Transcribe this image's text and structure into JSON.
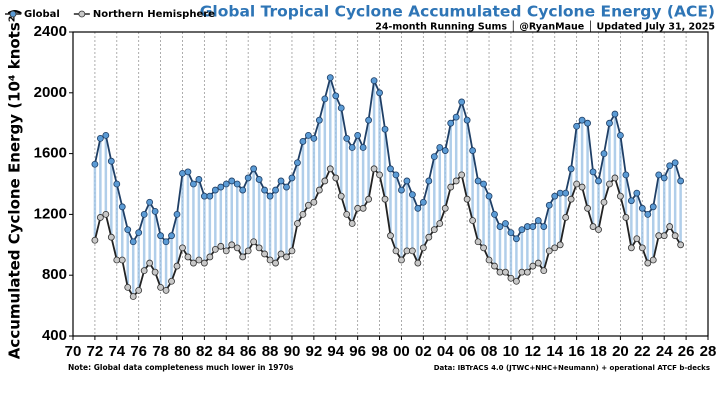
{
  "chart_data": {
    "type": "line",
    "title": "Global Tropical Cyclone Accumulated Cyclone Energy (ACE)",
    "subtitle": "24-month Running Sums │ @RyanMaue │ Updated July 31, 2025",
    "y_label": "Accumulated Cyclone Energy (10⁴ knots²)",
    "note": "Note:  Global data completeness much lower in 1970s",
    "source": "Data: IBTrACS 4.0 (JTWC+NHC+Neumann) + operational ATCF b-decks",
    "legend": "top-left",
    "grid": true,
    "xlim": [
      1970,
      2028
    ],
    "xticks": [
      {
        "value": 1970,
        "label": "70"
      },
      {
        "value": 1972,
        "label": "72"
      },
      {
        "value": 1974,
        "label": "74"
      },
      {
        "value": 1976,
        "label": "76"
      },
      {
        "value": 1978,
        "label": "78"
      },
      {
        "value": 1980,
        "label": "80"
      },
      {
        "value": 1982,
        "label": "82"
      },
      {
        "value": 1984,
        "label": "84"
      },
      {
        "value": 1986,
        "label": "86"
      },
      {
        "value": 1988,
        "label": "88"
      },
      {
        "value": 1990,
        "label": "90"
      },
      {
        "value": 1992,
        "label": "92"
      },
      {
        "value": 1994,
        "label": "94"
      },
      {
        "value": 1996,
        "label": "96"
      },
      {
        "value": 1998,
        "label": "98"
      },
      {
        "value": 2000,
        "label": "00"
      },
      {
        "value": 2002,
        "label": "02"
      },
      {
        "value": 2004,
        "label": "04"
      },
      {
        "value": 2006,
        "label": "06"
      },
      {
        "value": 2008,
        "label": "08"
      },
      {
        "value": 2010,
        "label": "10"
      },
      {
        "value": 2012,
        "label": "12"
      },
      {
        "value": 2014,
        "label": "14"
      },
      {
        "value": 2016,
        "label": "16"
      },
      {
        "value": 2018,
        "label": "18"
      },
      {
        "value": 2020,
        "label": "20"
      },
      {
        "value": 2022,
        "label": "22"
      },
      {
        "value": 2024,
        "label": "24"
      },
      {
        "value": 2026,
        "label": "26"
      },
      {
        "value": 2028,
        "label": "28"
      }
    ],
    "ylim": [
      400,
      2400
    ],
    "yticks": [
      400,
      800,
      1200,
      1600,
      2000,
      2400
    ],
    "x": [
      1972,
      1972.5,
      1973,
      1973.5,
      1974,
      1974.5,
      1975,
      1975.5,
      1976,
      1976.5,
      1977,
      1977.5,
      1978,
      1978.5,
      1979,
      1979.5,
      1980,
      1980.5,
      1981,
      1981.5,
      1982,
      1982.5,
      1983,
      1983.5,
      1984,
      1984.5,
      1985,
      1985.5,
      1986,
      1986.5,
      1987,
      1987.5,
      1988,
      1988.5,
      1989,
      1989.5,
      1990,
      1990.5,
      1991,
      1991.5,
      1992,
      1992.5,
      1993,
      1993.5,
      1994,
      1994.5,
      1995,
      1995.5,
      1996,
      1996.5,
      1997,
      1997.5,
      1998,
      1998.5,
      1999,
      1999.5,
      2000,
      2000.5,
      2001,
      2001.5,
      2002,
      2002.5,
      2003,
      2003.5,
      2004,
      2004.5,
      2005,
      2005.5,
      2006,
      2006.5,
      2007,
      2007.5,
      2008,
      2008.5,
      2009,
      2009.5,
      2010,
      2010.5,
      2011,
      2011.5,
      2012,
      2012.5,
      2013,
      2013.5,
      2014,
      2014.5,
      2015,
      2015.5,
      2016,
      2016.5,
      2017,
      2017.5,
      2018,
      2018.5,
      2019,
      2019.5,
      2020,
      2020.5,
      2021,
      2021.5,
      2022,
      2022.5,
      2023,
      2023.5,
      2024,
      2024.5,
      2025,
      2025.5
    ],
    "series": [
      {
        "name": "Global",
        "color": "#5b9bd5",
        "values": [
          1530,
          1700,
          1720,
          1550,
          1400,
          1250,
          1100,
          1020,
          1080,
          1200,
          1280,
          1220,
          1060,
          1020,
          1060,
          1200,
          1470,
          1480,
          1400,
          1430,
          1320,
          1320,
          1360,
          1380,
          1400,
          1420,
          1400,
          1360,
          1440,
          1500,
          1430,
          1360,
          1320,
          1360,
          1420,
          1380,
          1440,
          1540,
          1680,
          1720,
          1700,
          1820,
          1960,
          2100,
          1980,
          1900,
          1700,
          1640,
          1720,
          1640,
          1820,
          2080,
          2000,
          1760,
          1500,
          1460,
          1360,
          1420,
          1330,
          1240,
          1280,
          1420,
          1580,
          1640,
          1620,
          1800,
          1840,
          1940,
          1820,
          1620,
          1420,
          1400,
          1320,
          1200,
          1120,
          1140,
          1080,
          1040,
          1100,
          1120,
          1120,
          1160,
          1120,
          1260,
          1320,
          1340,
          1340,
          1500,
          1780,
          1820,
          1800,
          1480,
          1420,
          1600,
          1800,
          1860,
          1720,
          1460,
          1290,
          1340,
          1240,
          1200,
          1250,
          1460,
          1440,
          1520,
          1540,
          1420
        ]
      },
      {
        "name": "Northern Hemisphere",
        "color": "#c8c8c8",
        "values": [
          1030,
          1180,
          1200,
          1050,
          900,
          900,
          720,
          660,
          700,
          830,
          880,
          820,
          720,
          700,
          760,
          860,
          980,
          920,
          880,
          900,
          880,
          920,
          970,
          990,
          960,
          1000,
          980,
          920,
          960,
          1020,
          980,
          940,
          900,
          880,
          940,
          920,
          960,
          1140,
          1200,
          1260,
          1280,
          1360,
          1420,
          1500,
          1440,
          1320,
          1200,
          1140,
          1240,
          1240,
          1300,
          1500,
          1460,
          1300,
          1060,
          960,
          900,
          960,
          960,
          880,
          980,
          1050,
          1100,
          1140,
          1240,
          1380,
          1420,
          1460,
          1300,
          1160,
          1020,
          980,
          900,
          860,
          820,
          820,
          780,
          760,
          820,
          820,
          860,
          880,
          830,
          960,
          980,
          1000,
          1180,
          1300,
          1400,
          1380,
          1240,
          1120,
          1100,
          1280,
          1400,
          1440,
          1320,
          1180,
          980,
          1040,
          980,
          880,
          900,
          1060,
          1060,
          1120,
          1060,
          1000
        ]
      }
    ]
  }
}
